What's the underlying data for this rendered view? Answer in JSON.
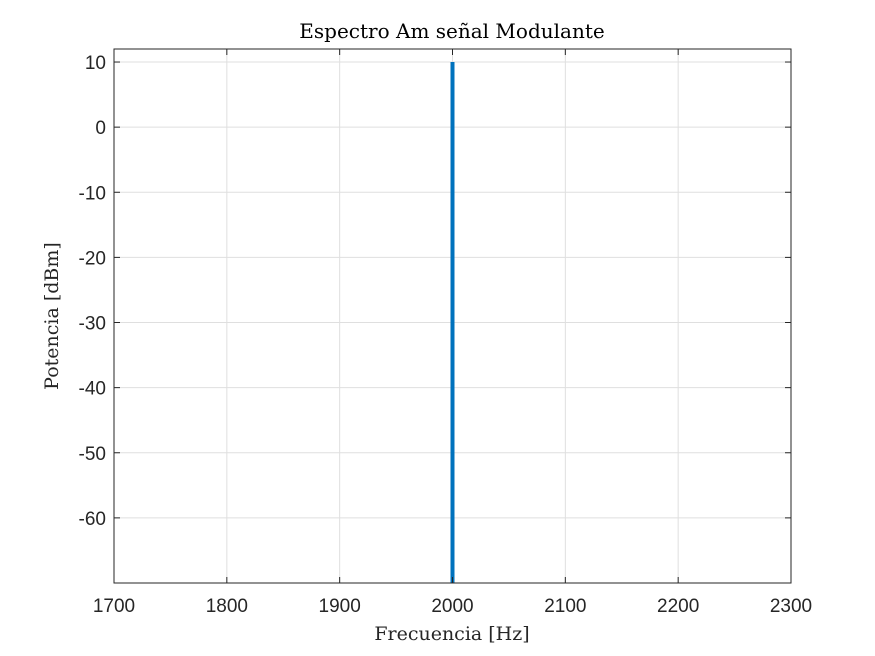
{
  "chart_data": {
    "type": "line",
    "title": "Espectro Am señal Modulante",
    "xlabel": "Frecuencia [Hz]",
    "ylabel": "Potencia [dBm]",
    "xlim": [
      1700,
      2300
    ],
    "ylim": [
      -70,
      12
    ],
    "xticks": [
      1700,
      1800,
      1900,
      2000,
      2100,
      2200,
      2300
    ],
    "xtick_labels": [
      "1700",
      "1800",
      "1900",
      "2000",
      "2100",
      "2200",
      "2300"
    ],
    "yticks": [
      -60,
      -50,
      -40,
      -30,
      -20,
      -10,
      0,
      10
    ],
    "ytick_labels": [
      "-60",
      "-50",
      "-40",
      "-30",
      "-20",
      "-10",
      "0",
      "10"
    ],
    "grid": true,
    "series": [
      {
        "color": "#0072BD",
        "points": [
          {
            "x": 2000,
            "y": 10
          },
          {
            "x": 2000,
            "y": -70
          }
        ]
      }
    ]
  }
}
